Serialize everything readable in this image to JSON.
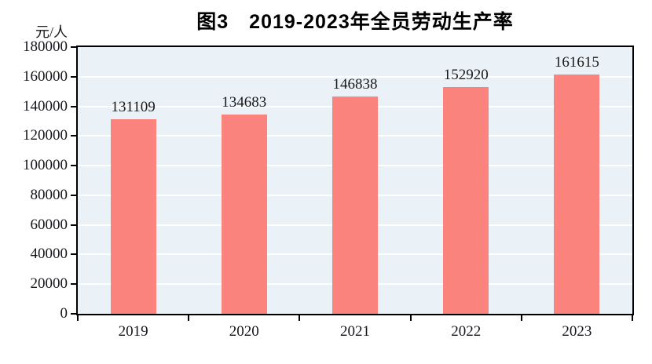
{
  "title": "图3　2019-2023年全员劳动生产率",
  "y_unit_label": "元/人",
  "chart_data": {
    "type": "bar",
    "title": "图3　2019-2023年全员劳动生产率",
    "categories": [
      "2019",
      "2020",
      "2021",
      "2022",
      "2023"
    ],
    "values": [
      131109,
      134683,
      146838,
      152920,
      161615
    ],
    "xlabel": "",
    "ylabel": "元/人",
    "ylim": [
      0,
      180000
    ],
    "ytick_step": 20000,
    "ytick_labels": [
      "0",
      "20000",
      "40000",
      "60000",
      "80000",
      "100000",
      "120000",
      "140000",
      "160000",
      "180000"
    ],
    "grid": true,
    "legend": "none",
    "colors": {
      "bar": "#FA837D",
      "plot_background": "#EBF2F7",
      "gridline": "#FFFFFF",
      "axis": "#000000",
      "text": "#1A1A1A"
    }
  }
}
